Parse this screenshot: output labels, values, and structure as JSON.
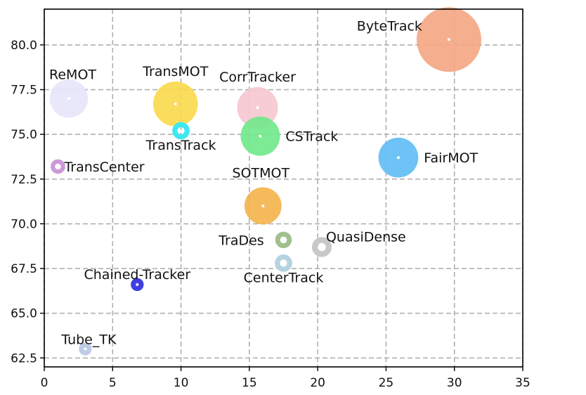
{
  "chart_data": {
    "type": "scatter",
    "title": "",
    "xlabel": "",
    "ylabel": "",
    "xlim": [
      0,
      35
    ],
    "ylim": [
      62,
      82
    ],
    "x_ticks": [
      0,
      5,
      10,
      15,
      20,
      25,
      30,
      35
    ],
    "y_ticks": [
      62.5,
      65.0,
      67.5,
      70.0,
      72.5,
      75.0,
      77.5,
      80.0
    ],
    "x_tick_labels": [
      "0",
      "5",
      "10",
      "15",
      "20",
      "25",
      "30",
      "35"
    ],
    "y_tick_labels": [
      "62.5",
      "65.0",
      "67.5",
      "70.0",
      "72.5",
      "75.0",
      "77.5",
      "80.0"
    ],
    "grid": true,
    "points": [
      {
        "label": "ByteTrack",
        "x": 29.6,
        "y": 80.3,
        "size": 1.0,
        "color": "#f4a582",
        "label_pos": "upper-left"
      },
      {
        "label": "ReMOT",
        "x": 1.8,
        "y": 77.0,
        "size": 0.35,
        "color": "#e6e6fa",
        "label_pos": "upper-left"
      },
      {
        "label": "TransMOT",
        "x": 9.6,
        "y": 76.7,
        "size": 0.48,
        "color": "#f9d94a",
        "label_pos": "above"
      },
      {
        "label": "CorrTracker",
        "x": 15.6,
        "y": 76.5,
        "size": 0.4,
        "color": "#f6c6cf",
        "label_pos": "above"
      },
      {
        "label": "TransTrack",
        "x": 10.0,
        "y": 75.2,
        "size": 0.1,
        "color": "#3ee8f0",
        "ring": true,
        "label_pos": "below"
      },
      {
        "label": "CSTrack",
        "x": 15.8,
        "y": 74.9,
        "size": 0.37,
        "color": "#6fe88a",
        "label_pos": "right"
      },
      {
        "label": "TransCenter",
        "x": 1.0,
        "y": 73.2,
        "size": 0.07,
        "color": "#cc99d9",
        "ring": true,
        "label_pos": "right"
      },
      {
        "label": "FairMOT",
        "x": 25.9,
        "y": 73.7,
        "size": 0.38,
        "color": "#5ebdf5",
        "label_pos": "right"
      },
      {
        "label": "SOTMOT",
        "x": 16.0,
        "y": 71.0,
        "size": 0.33,
        "color": "#f3b34a",
        "label_pos": "above"
      },
      {
        "label": "TraDes",
        "x": 17.5,
        "y": 69.1,
        "size": 0.09,
        "color": "#9fc08f",
        "ring": true,
        "label_pos": "left"
      },
      {
        "label": "QuasiDense",
        "x": 20.3,
        "y": 68.7,
        "size": 0.13,
        "color": "#c8c8c8",
        "ring": true,
        "label_pos": "upper-right"
      },
      {
        "label": "CenterTrack",
        "x": 17.5,
        "y": 67.8,
        "size": 0.1,
        "color": "#b6d3e2",
        "ring": true,
        "label_pos": "below"
      },
      {
        "label": "Chained-Tracker",
        "x": 6.8,
        "y": 66.6,
        "size": 0.04,
        "color": "#2a2adf",
        "label_pos": "upper-center"
      },
      {
        "label": "Tube_TK",
        "x": 3.0,
        "y": 63.0,
        "size": 0.04,
        "color": "#b8c6e6",
        "label_pos": "upper-right"
      }
    ]
  }
}
